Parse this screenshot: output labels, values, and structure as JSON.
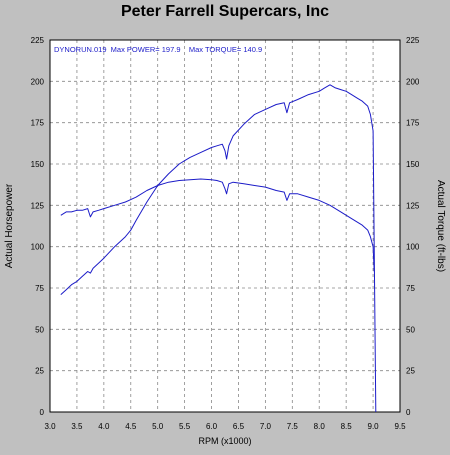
{
  "chart_data": {
    "type": "line",
    "title": "Peter Farrell Supercars, Inc",
    "annotation": "DYNORUN.019  Max POWER= 197.9    Max TORQUE= 140.9",
    "xlabel": "RPM (x1000)",
    "ylabel_left": "Actual Horsepower",
    "ylabel_right": "Actual Torque (ft-lbs)",
    "xlim": [
      3.0,
      9.5
    ],
    "ylim": [
      0,
      225
    ],
    "x_ticks": [
      "3.0",
      "3.5",
      "4.0",
      "4.5",
      "5.0",
      "5.5",
      "6.0",
      "6.5",
      "7.0",
      "7.5",
      "8.0",
      "8.5",
      "9.0",
      "9.5"
    ],
    "y_ticks": [
      "0",
      "25",
      "50",
      "75",
      "100",
      "125",
      "150",
      "175",
      "200",
      "225"
    ],
    "grid": true,
    "line_color": "#1c1cc8",
    "series": [
      {
        "x": [
          3.2,
          3.3,
          3.4,
          3.5,
          3.6,
          3.7,
          3.75,
          3.8,
          3.9,
          4.0,
          4.2,
          4.4,
          4.5,
          4.6,
          4.8,
          5.0,
          5.2,
          5.4,
          5.5,
          5.6,
          5.8,
          6.0,
          6.1,
          6.2,
          6.25,
          6.28,
          6.32,
          6.4,
          6.6,
          6.8,
          7.0,
          7.2,
          7.35,
          7.4,
          7.45,
          7.6,
          7.8,
          8.0,
          8.1,
          8.2,
          8.3,
          8.4,
          8.5,
          8.6,
          8.7,
          8.8,
          8.9,
          8.95,
          9.0,
          9.02,
          9.05
        ],
        "values": [
          71,
          74,
          77,
          79,
          82,
          85,
          84,
          87,
          90,
          93,
          100,
          106,
          110,
          116,
          127,
          137,
          144,
          150,
          152,
          154,
          157,
          160,
          161,
          162,
          158,
          153,
          161,
          167,
          174,
          180,
          183,
          186,
          187,
          181,
          187,
          189,
          192,
          194,
          196,
          197.9,
          196,
          195,
          194,
          192,
          190,
          188,
          185,
          180,
          170,
          100,
          0
        ]
      },
      {
        "x": [
          3.2,
          3.3,
          3.4,
          3.5,
          3.6,
          3.7,
          3.75,
          3.8,
          3.9,
          4.0,
          4.2,
          4.4,
          4.6,
          4.8,
          5.0,
          5.2,
          5.4,
          5.6,
          5.8,
          6.0,
          6.1,
          6.2,
          6.25,
          6.28,
          6.32,
          6.4,
          6.6,
          6.8,
          7.0,
          7.2,
          7.35,
          7.4,
          7.45,
          7.6,
          7.8,
          8.0,
          8.2,
          8.4,
          8.6,
          8.8,
          8.9,
          8.95,
          9.0,
          9.02
        ],
        "values": [
          119,
          121,
          121,
          122,
          122,
          123,
          118,
          121,
          122,
          123,
          125,
          127,
          130,
          134,
          137,
          139,
          140,
          140.5,
          140.9,
          140.5,
          140,
          139,
          135,
          132,
          138,
          139,
          138,
          137,
          136,
          134,
          133,
          128,
          132,
          132,
          130,
          128,
          125,
          121,
          117,
          113,
          110,
          106,
          100,
          85
        ]
      }
    ]
  }
}
